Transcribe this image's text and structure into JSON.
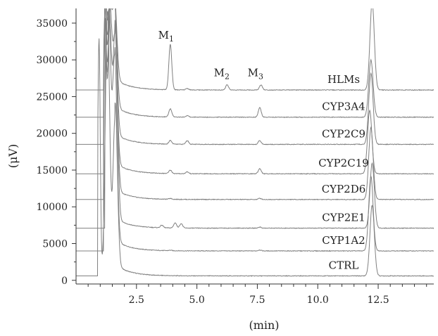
{
  "chart_data": {
    "type": "line",
    "title": "",
    "xlabel": "(min)",
    "ylabel": "(μV)",
    "xlim": [
      0,
      14.8
    ],
    "ylim": [
      -500,
      37000
    ],
    "x_ticks": [
      "2.5",
      "5.0",
      "7.5",
      "10.0",
      "12.5"
    ],
    "y_ticks": [
      "0",
      "5000",
      "10000",
      "15000",
      "20000",
      "25000",
      "30000",
      "35000"
    ],
    "grid": false,
    "legend": "none",
    "line_color": "#808080",
    "peak_labels": [
      {
        "main": "M",
        "sub": "1",
        "x": 3.9,
        "y": 32500
      },
      {
        "main": "M",
        "sub": "2",
        "x": 6.2,
        "y": 27400
      },
      {
        "main": "M",
        "sub": "3",
        "x": 7.6,
        "y": 27400
      }
    ],
    "series": [
      {
        "name": "CTRL",
        "baseline": 600,
        "solvent_start": 0.9,
        "solvent_peaks": [
          [
            1.3,
            36000
          ],
          [
            1.62,
            22000
          ]
        ],
        "solvent_tail": 1600,
        "late_peak": [
          12.25,
          9600
        ],
        "peaks": []
      },
      {
        "name": "CYP1A2",
        "baseline": 4000,
        "solvent_start": 1.15,
        "solvent_peaks": [
          [
            1.35,
            32000
          ],
          [
            1.6,
            26000
          ]
        ],
        "solvent_tail": 1500,
        "late_peak": [
          12.2,
          10200
        ],
        "peaks": [
          [
            3.9,
            60
          ],
          [
            7.6,
            130
          ]
        ]
      },
      {
        "name": "CYP2E1",
        "baseline": 7100,
        "solvent_start": 1.2,
        "solvent_peaks": [
          [
            1.38,
            28000
          ],
          [
            1.62,
            26000
          ]
        ],
        "solvent_tail": 1400,
        "late_peak": [
          12.25,
          8800
        ],
        "peaks": [
          [
            3.55,
            350
          ],
          [
            4.1,
            700
          ],
          [
            4.35,
            600
          ],
          [
            7.6,
            150
          ]
        ]
      },
      {
        "name": "CYP2D6",
        "baseline": 11000,
        "solvent_start": 1.15,
        "solvent_peaks": [
          [
            1.4,
            25000
          ],
          [
            1.62,
            21000
          ]
        ],
        "solvent_tail": 1400,
        "late_peak": [
          12.2,
          9800
        ],
        "peaks": [
          [
            3.9,
            120
          ],
          [
            7.6,
            160
          ]
        ]
      },
      {
        "name": "CYP2C19",
        "baseline": 14500,
        "solvent_start": 1.15,
        "solvent_peaks": [
          [
            1.4,
            21000
          ],
          [
            1.6,
            21000
          ]
        ],
        "solvent_tail": 1500,
        "late_peak": [
          12.15,
          8600
        ],
        "peaks": [
          [
            3.9,
            450
          ],
          [
            4.6,
            250
          ],
          [
            7.6,
            700
          ]
        ]
      },
      {
        "name": "CYP2C9",
        "baseline": 18500,
        "solvent_start": 1.15,
        "solvent_peaks": [
          [
            1.4,
            17000
          ],
          [
            1.6,
            17000
          ]
        ],
        "solvent_tail": 1500,
        "late_peak": [
          12.2,
          9700
        ],
        "peaks": [
          [
            3.9,
            500
          ],
          [
            4.6,
            500
          ],
          [
            7.6,
            500
          ]
        ]
      },
      {
        "name": "CYP3A4",
        "baseline": 22200,
        "solvent_start": 1.15,
        "solvent_peaks": [
          [
            1.4,
            15000
          ],
          [
            1.6,
            14000
          ]
        ],
        "solvent_tail": 1500,
        "late_peak": [
          12.2,
          7800
        ],
        "peaks": [
          [
            3.9,
            1100
          ],
          [
            4.6,
            200
          ],
          [
            7.6,
            1300
          ]
        ]
      },
      {
        "name": "HLMs",
        "baseline": 25900,
        "solvent_start": 1.15,
        "solvent_peaks": [
          [
            1.4,
            11500
          ],
          [
            1.6,
            10500
          ]
        ],
        "solvent_tail": 1500,
        "late_peak": [
          12.25,
          12000
        ],
        "peaks": [
          [
            3.9,
            6200
          ],
          [
            4.6,
            200
          ],
          [
            6.25,
            700
          ],
          [
            7.65,
            700
          ]
        ]
      }
    ]
  }
}
